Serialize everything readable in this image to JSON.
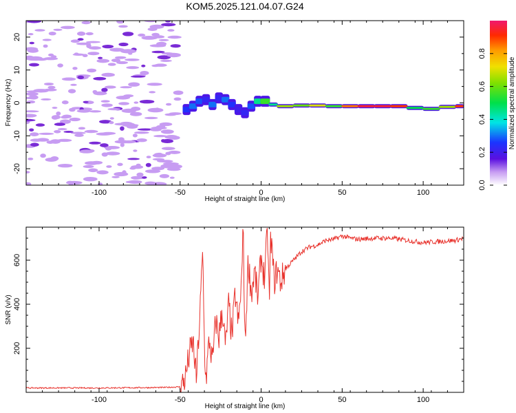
{
  "title": "KOM5.2025.121.04.07.G24",
  "colors": {
    "snr_line": "#e8322c",
    "noise": "#c79cf2",
    "noise_dark": "#7a2bd6",
    "axis": "#000000"
  },
  "colorbar": {
    "label": "Normalized spectral amplitude",
    "ticks": [
      "0.0",
      "0.2",
      "0.4",
      "0.6",
      "0.8"
    ],
    "range": [
      0,
      1
    ]
  },
  "chart_data": [
    {
      "type": "heatmap",
      "title": "KOM5.2025.121.04.07.G24",
      "xlabel": "Height of straight line (km)",
      "ylabel": "Frequency (Hz)",
      "xlim": [
        -145,
        125
      ],
      "ylim": [
        -25,
        25
      ],
      "x_ticks": [
        -100,
        -50,
        0,
        50,
        100
      ],
      "y_ticks": [
        -20,
        -10,
        0,
        10,
        20
      ],
      "noise_region_x": [
        -145,
        -50
      ],
      "ridge": [
        {
          "x": -48,
          "y": -2.0,
          "amp": 0.25
        },
        {
          "x": -44,
          "y": -1.0,
          "amp": 0.3
        },
        {
          "x": -40,
          "y": 0.5,
          "amp": 0.28
        },
        {
          "x": -36,
          "y": 1.0,
          "amp": 0.22
        },
        {
          "x": -32,
          "y": -0.5,
          "amp": 0.3
        },
        {
          "x": -28,
          "y": 1.5,
          "amp": 0.22
        },
        {
          "x": -24,
          "y": 1.0,
          "amp": 0.3
        },
        {
          "x": -20,
          "y": -0.5,
          "amp": 0.25
        },
        {
          "x": -16,
          "y": -2.0,
          "amp": 0.2
        },
        {
          "x": -12,
          "y": -3.0,
          "amp": 0.22
        },
        {
          "x": -8,
          "y": -1.0,
          "amp": 0.28
        },
        {
          "x": -4,
          "y": 0.5,
          "amp": 0.45
        },
        {
          "x": 0,
          "y": 0.5,
          "amp": 0.55
        },
        {
          "x": 5,
          "y": -0.5,
          "amp": 0.45
        },
        {
          "x": 10,
          "y": -1.0,
          "amp": 0.65
        },
        {
          "x": 20,
          "y": -0.8,
          "amp": 0.6
        },
        {
          "x": 30,
          "y": -0.8,
          "amp": 0.7
        },
        {
          "x": 40,
          "y": -1.0,
          "amp": 0.55
        },
        {
          "x": 50,
          "y": -1.0,
          "amp": 0.85
        },
        {
          "x": 60,
          "y": -1.0,
          "amp": 0.95
        },
        {
          "x": 70,
          "y": -1.0,
          "amp": 0.95
        },
        {
          "x": 80,
          "y": -1.0,
          "amp": 0.9
        },
        {
          "x": 90,
          "y": -1.5,
          "amp": 0.5
        },
        {
          "x": 100,
          "y": -1.8,
          "amp": 0.55
        },
        {
          "x": 110,
          "y": -1.2,
          "amp": 0.65
        },
        {
          "x": 120,
          "y": -1.0,
          "amp": 0.9
        },
        {
          "x": 125,
          "y": -1.0,
          "amp": 0.95
        }
      ]
    },
    {
      "type": "line",
      "xlabel": "Height of straight line (km)",
      "ylabel": "SNR (v/v)",
      "xlim": [
        -145,
        125
      ],
      "ylim": [
        0,
        750
      ],
      "x_ticks": [
        -100,
        -50,
        0,
        50,
        100
      ],
      "y_ticks": [
        200,
        400,
        600
      ],
      "x": [
        -145,
        -100,
        -60,
        -50,
        -47,
        -44,
        -42,
        -40,
        -38,
        -36,
        -35,
        -34,
        -32,
        -30,
        -28,
        -26,
        -24,
        -22,
        -20,
        -18,
        -16,
        -14,
        -12,
        -11,
        -10,
        -8,
        -6,
        -4,
        -2,
        0,
        2,
        4,
        5,
        6,
        8,
        10,
        12,
        15,
        20,
        25,
        30,
        35,
        40,
        45,
        50,
        55,
        60,
        70,
        80,
        90,
        100,
        110,
        120,
        125
      ],
      "y": [
        20,
        20,
        22,
        25,
        60,
        180,
        230,
        60,
        320,
        640,
        200,
        60,
        240,
        130,
        330,
        250,
        380,
        200,
        400,
        250,
        450,
        300,
        520,
        750,
        200,
        600,
        450,
        550,
        420,
        620,
        520,
        730,
        400,
        720,
        500,
        560,
        500,
        560,
        600,
        640,
        660,
        670,
        690,
        695,
        710,
        700,
        695,
        700,
        700,
        690,
        680,
        685,
        690,
        700
      ]
    }
  ]
}
